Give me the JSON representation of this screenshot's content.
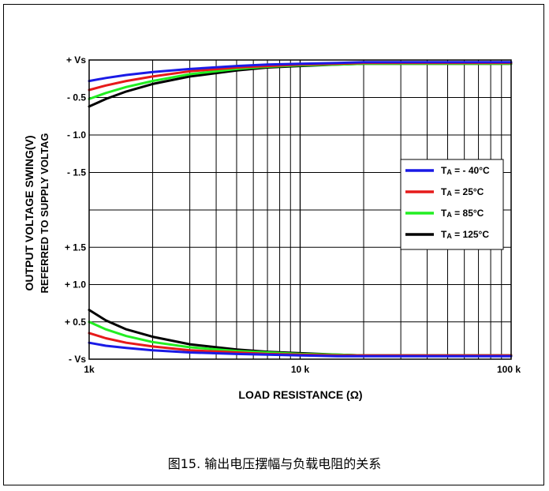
{
  "chart_data": {
    "type": "line",
    "x_scale": "log",
    "xlim": [
      1000,
      100000
    ],
    "x_tick_labels": [
      {
        "value": 1000,
        "label": "1k"
      },
      {
        "value": 10000,
        "label": "10 k"
      },
      {
        "value": 100000,
        "label": "100 k"
      }
    ],
    "xlabel": "LOAD RESISTANCE (Ω)",
    "ylabel": "OUTPUT VOLTAGE SWING(V)",
    "ylabel2": "REFERRED TO SUPPLY VOLTAG",
    "upper_axis": {
      "y_unit": "V below +Vs",
      "ylim": [
        -2.0,
        0
      ],
      "tick_labels": [
        {
          "value": 0,
          "label": "+ Vs"
        },
        {
          "value": -0.5,
          "label": "- 0.5"
        },
        {
          "value": -1.0,
          "label": "- 1.0"
        },
        {
          "value": -1.5,
          "label": "- 1.5"
        }
      ]
    },
    "lower_axis": {
      "y_unit": "V above -Vs",
      "ylim": [
        0,
        2.0
      ],
      "tick_labels": [
        {
          "value": 0,
          "label": "- Vs"
        },
        {
          "value": 0.5,
          "label": "+ 0.5"
        },
        {
          "value": 1.0,
          "label": "+ 1.0"
        },
        {
          "value": 1.5,
          "label": "+ 1.5"
        }
      ]
    },
    "grid": true,
    "legend_position": "right-middle",
    "series": [
      {
        "name": "TA = - 40°C",
        "legend_sub": "A",
        "legend_rest": "= - 40°C",
        "color": "#1a1ae6",
        "upper": {
          "x": [
            1000,
            1200,
            1500,
            2000,
            3000,
            5000,
            7000,
            10000,
            15000,
            20000,
            30000,
            50000,
            100000
          ],
          "y": [
            -0.28,
            -0.24,
            -0.2,
            -0.16,
            -0.12,
            -0.08,
            -0.06,
            -0.05,
            -0.04,
            -0.03,
            -0.03,
            -0.03,
            -0.03
          ]
        },
        "lower": {
          "x": [
            1000,
            1200,
            1500,
            2000,
            3000,
            5000,
            7000,
            10000,
            15000,
            20000,
            30000,
            50000,
            100000
          ],
          "y": [
            0.22,
            0.18,
            0.15,
            0.12,
            0.09,
            0.07,
            0.06,
            0.05,
            0.04,
            0.04,
            0.04,
            0.04,
            0.04
          ]
        }
      },
      {
        "name": "TA = 25°C",
        "legend_sub": "A",
        "legend_rest": "=   25°C",
        "color": "#e61a1a",
        "upper": {
          "x": [
            1000,
            1200,
            1500,
            2000,
            3000,
            5000,
            7000,
            10000,
            15000,
            20000,
            30000,
            50000,
            100000
          ],
          "y": [
            -0.4,
            -0.34,
            -0.28,
            -0.22,
            -0.15,
            -0.1,
            -0.08,
            -0.06,
            -0.05,
            -0.04,
            -0.04,
            -0.04,
            -0.04
          ]
        },
        "lower": {
          "x": [
            1000,
            1200,
            1500,
            2000,
            3000,
            5000,
            7000,
            10000,
            15000,
            20000,
            30000,
            50000,
            100000
          ],
          "y": [
            0.35,
            0.28,
            0.22,
            0.17,
            0.12,
            0.09,
            0.07,
            0.06,
            0.05,
            0.05,
            0.05,
            0.05,
            0.05
          ]
        }
      },
      {
        "name": "TA = 85°C",
        "legend_sub": "A",
        "legend_rest": "=   85°C",
        "color": "#22ee22",
        "upper": {
          "x": [
            1000,
            1200,
            1500,
            2000,
            3000,
            5000,
            7000,
            10000,
            15000,
            20000,
            30000,
            50000,
            100000
          ],
          "y": [
            -0.52,
            -0.44,
            -0.36,
            -0.28,
            -0.19,
            -0.12,
            -0.09,
            -0.07,
            -0.06,
            -0.05,
            -0.05,
            -0.05,
            -0.05
          ]
        },
        "lower": {
          "x": [
            1000,
            1200,
            1500,
            2000,
            3000,
            5000,
            7000,
            10000,
            15000,
            20000,
            30000,
            50000,
            100000
          ],
          "y": [
            0.5,
            0.4,
            0.31,
            0.23,
            0.16,
            0.11,
            0.09,
            0.07,
            0.06,
            0.05,
            0.05,
            0.05,
            0.05
          ]
        }
      },
      {
        "name": "TA = 125°C",
        "legend_sub": "A",
        "legend_rest": "= 125°C",
        "color": "#000000",
        "upper": {
          "x": [
            1000,
            1200,
            1500,
            2000,
            3000,
            5000,
            7000,
            10000,
            15000,
            20000,
            30000,
            50000,
            100000
          ],
          "y": [
            -0.62,
            -0.52,
            -0.42,
            -0.32,
            -0.22,
            -0.14,
            -0.1,
            -0.08,
            -0.06,
            -0.05,
            -0.05,
            -0.05,
            -0.05
          ]
        },
        "lower": {
          "x": [
            1000,
            1200,
            1500,
            2000,
            3000,
            5000,
            7000,
            10000,
            15000,
            20000,
            30000,
            50000,
            100000
          ],
          "y": [
            0.66,
            0.52,
            0.4,
            0.3,
            0.2,
            0.13,
            0.1,
            0.08,
            0.06,
            0.05,
            0.05,
            0.05,
            0.05
          ]
        }
      }
    ]
  },
  "caption": "图15. 输出电压摆幅与负载电阻的关系"
}
